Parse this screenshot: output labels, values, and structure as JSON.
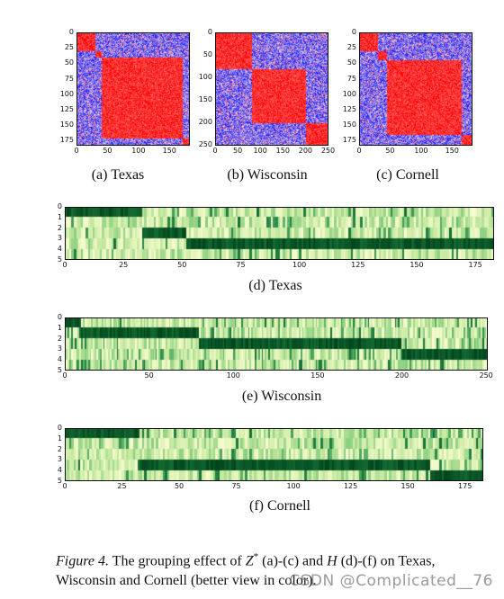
{
  "figure": {
    "subfigures": [
      {
        "id": "a",
        "label": "(a) Texas",
        "type": "heatmap",
        "size": 183,
        "yticks": [
          "0",
          "25",
          "50",
          "75",
          "100",
          "125",
          "150",
          "175"
        ],
        "xticks": [
          "0",
          "50",
          "100",
          "150"
        ],
        "colormap": "bwr",
        "blocks": [
          [
            0,
            30
          ],
          [
            30,
            40
          ],
          [
            40,
            170
          ],
          [
            170,
            183
          ]
        ]
      },
      {
        "id": "b",
        "label": "(b) Wisconsin",
        "type": "heatmap",
        "size": 251,
        "yticks": [
          "0",
          "50",
          "100",
          "150",
          "200",
          "250"
        ],
        "xticks": [
          "0",
          "50",
          "100",
          "150",
          "200",
          "250"
        ],
        "colormap": "bwr",
        "blocks": [
          [
            0,
            80
          ],
          [
            80,
            200
          ],
          [
            200,
            251
          ]
        ]
      },
      {
        "id": "c",
        "label": "(c) Cornell",
        "type": "heatmap",
        "size": 183,
        "yticks": [
          "0",
          "25",
          "50",
          "75",
          "100",
          "125",
          "150",
          "175"
        ],
        "xticks": [
          "0",
          "50",
          "100",
          "150"
        ],
        "colormap": "bwr",
        "blocks": [
          [
            0,
            30
          ],
          [
            30,
            45
          ],
          [
            45,
            165
          ],
          [
            165,
            183
          ]
        ]
      },
      {
        "id": "d",
        "label": "(d) Texas",
        "type": "heatmap",
        "rows": 5,
        "cols": 183,
        "yticks": [
          "0",
          "1",
          "2",
          "3",
          "4",
          "5"
        ],
        "xticks": [
          "0",
          "25",
          "50",
          "75",
          "100",
          "125",
          "150",
          "175"
        ],
        "colormap": "Greens",
        "segments": [
          [
            0,
            33,
            0
          ],
          [
            33,
            52,
            2
          ],
          [
            52,
            183,
            3
          ]
        ]
      },
      {
        "id": "e",
        "label": "(e) Wisconsin",
        "type": "heatmap",
        "rows": 5,
        "cols": 251,
        "yticks": [
          "0",
          "1",
          "2",
          "3",
          "4",
          "5"
        ],
        "xticks": [
          "0",
          "50",
          "100",
          "150",
          "200",
          "250"
        ],
        "colormap": "Greens",
        "segments": [
          [
            0,
            10,
            0
          ],
          [
            10,
            80,
            1
          ],
          [
            80,
            200,
            2
          ],
          [
            200,
            251,
            3
          ]
        ]
      },
      {
        "id": "f",
        "label": "(f) Cornell",
        "type": "heatmap",
        "rows": 5,
        "cols": 183,
        "yticks": [
          "0",
          "1",
          "2",
          "3",
          "4",
          "5"
        ],
        "xticks": [
          "0",
          "25",
          "50",
          "75",
          "100",
          "125",
          "150",
          "175"
        ],
        "colormap": "Greens",
        "segments": [
          [
            0,
            33,
            0
          ],
          [
            33,
            50,
            3
          ],
          [
            50,
            160,
            3
          ],
          [
            160,
            183,
            4
          ]
        ]
      }
    ]
  },
  "caption": {
    "prefix": "Figure 4.",
    "text_before_z": " The grouping effect of ",
    "z": "Z",
    "z_sup": "*",
    "text_mid": " (a)-(c) and ",
    "h": "H",
    "text_after": " (d)-(f) on Texas, Wisconsin and Cornell (better view in color)."
  },
  "watermark": "CSDN @Complicated__76",
  "colors": {
    "red": "#d0021b",
    "blue": "#1a1aff",
    "green_dark": "#00441b",
    "green_light": "#f7fcd0"
  }
}
